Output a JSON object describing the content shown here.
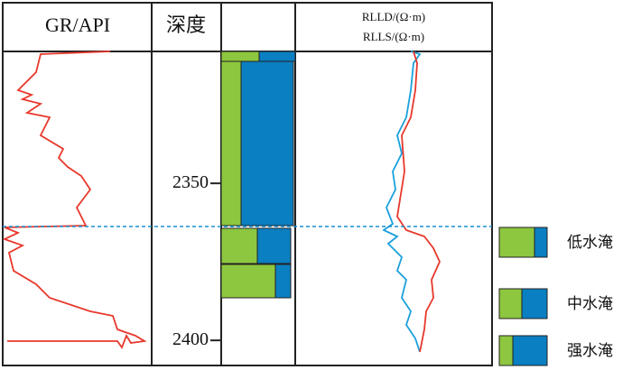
{
  "header": {
    "gr": "GR/API",
    "depth": "深度",
    "rlld": "RLLD/(Ω·m)",
    "rlls": "RLLS/(Ω·m)"
  },
  "depth_axis": {
    "lim": [
      2308,
      2408
    ],
    "ticks": [
      2350,
      2400
    ]
  },
  "legend": [
    {
      "label": "低水淹"
    },
    {
      "label": "中水淹"
    },
    {
      "label": "强水淹"
    }
  ]
}
